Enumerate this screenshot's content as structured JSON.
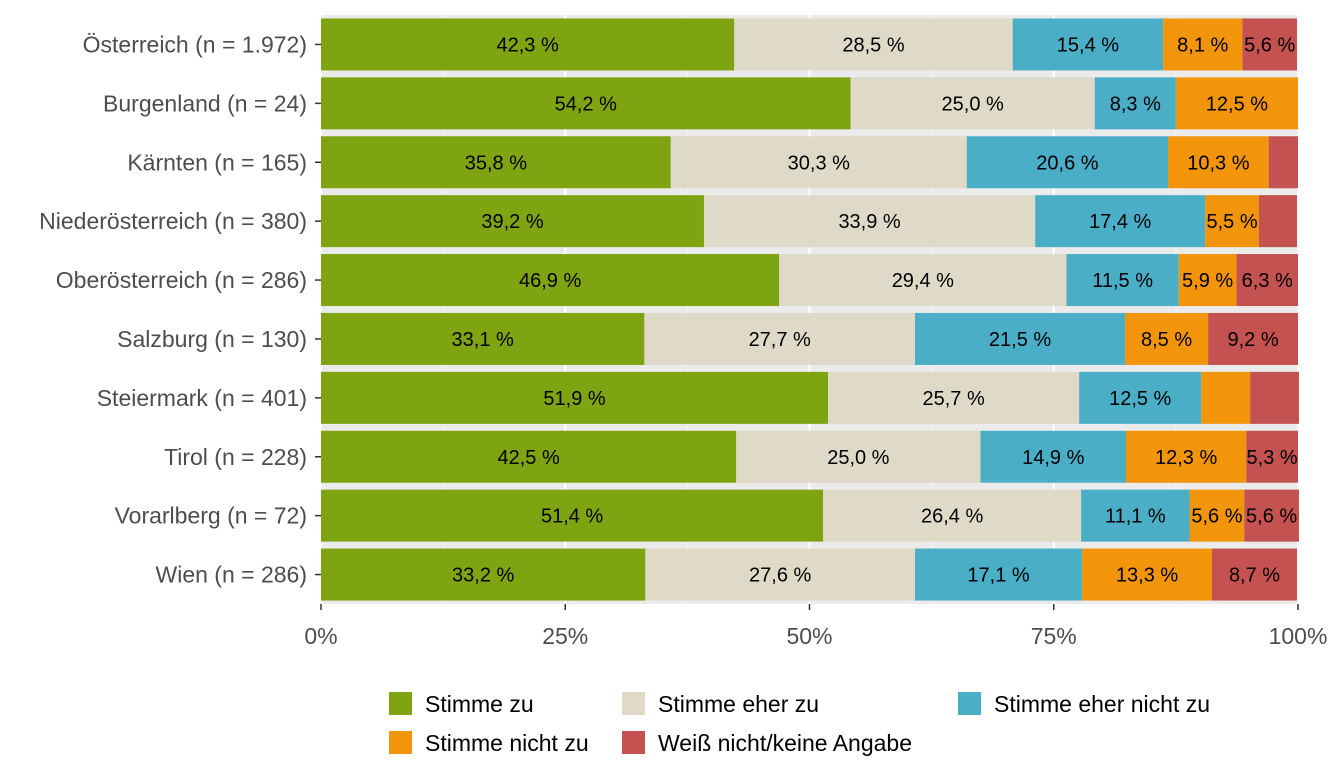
{
  "chart_data": {
    "type": "bar",
    "orientation": "horizontal",
    "stacked": true,
    "percent": true,
    "categories": [
      "Österreich (n = 1.972)",
      "Burgenland (n = 24)",
      "Kärnten (n = 165)",
      "Niederösterreich (n = 380)",
      "Oberösterreich (n = 286)",
      "Salzburg (n = 130)",
      "Steiermark (n = 401)",
      "Tirol (n = 228)",
      "Vorarlberg (n = 72)",
      "Wien (n = 286)"
    ],
    "series": [
      {
        "name": "Stimme zu",
        "color": "#7fa412",
        "values": [
          42.3,
          54.2,
          35.8,
          39.2,
          46.9,
          33.1,
          51.9,
          42.5,
          51.4,
          33.2
        ],
        "labels": [
          "42,3 %",
          "54,2 %",
          "35,8 %",
          "39,2 %",
          "46,9 %",
          "33,1 %",
          "51,9 %",
          "42,5 %",
          "51,4 %",
          "33,2 %"
        ]
      },
      {
        "name": "Stimme eher zu",
        "color": "#dedac7",
        "values": [
          28.5,
          25.0,
          30.3,
          33.9,
          29.4,
          27.7,
          25.7,
          25.0,
          26.4,
          27.6
        ],
        "labels": [
          "28,5 %",
          "25,0 %",
          "30,3 %",
          "33,9 %",
          "29,4 %",
          "27,7 %",
          "25,7 %",
          "25,0 %",
          "26,4 %",
          "27,6 %"
        ]
      },
      {
        "name": "Stimme eher nicht zu",
        "color": "#4aaec7",
        "values": [
          15.4,
          8.3,
          20.6,
          17.4,
          11.5,
          21.5,
          12.5,
          14.9,
          11.1,
          17.1
        ],
        "labels": [
          "15,4 %",
          "8,3 %",
          "20,6 %",
          "17,4 %",
          "11,5 %",
          "21,5 %",
          "12,5 %",
          "14,9 %",
          "11,1 %",
          "17,1 %"
        ]
      },
      {
        "name": "Stimme nicht zu",
        "color": "#f2950b",
        "values": [
          8.1,
          12.5,
          10.3,
          5.5,
          5.9,
          8.5,
          5.0,
          12.3,
          5.6,
          13.3
        ],
        "labels": [
          "8,1 %",
          "12,5 %",
          "10,3 %",
          "5,5 %",
          "5,9 %",
          "8,5 %",
          "",
          "12,3 %",
          "5,6 %",
          "13,3 %"
        ]
      },
      {
        "name": "Weiß nicht/keine Angabe",
        "color": "#c45250",
        "values": [
          5.6,
          0.0,
          3.0,
          3.9,
          6.3,
          9.2,
          5.0,
          5.3,
          5.6,
          8.7
        ],
        "labels": [
          "5,6 %",
          "",
          "",
          "",
          "6,3 %",
          "9,2 %",
          "",
          "5,3 %",
          "5,6 %",
          "8,7 %"
        ]
      }
    ],
    "xlim": [
      0,
      100
    ],
    "x_ticks": [
      "0%",
      "25%",
      "50%",
      "75%",
      "100%"
    ],
    "x_tick_values": [
      0,
      25,
      50,
      75,
      100
    ],
    "xlabel": "",
    "ylabel": "",
    "title": "",
    "grid": true,
    "legend_position": "bottom",
    "panel_background": "#ebebeb"
  }
}
